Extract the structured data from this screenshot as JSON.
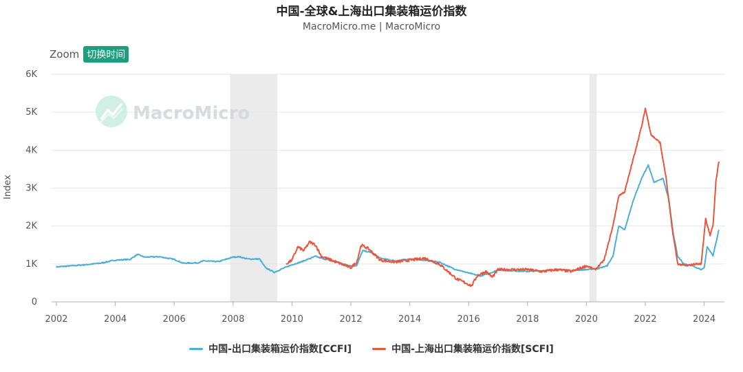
{
  "header": {
    "title": "中国-全球&上海出口集装箱运价指数",
    "subtitle": "MacroMicro.me | MacroMicro"
  },
  "controls": {
    "zoom_label": "Zoom",
    "zoom_button": "切换时间"
  },
  "watermark": {
    "text": "MacroMicro",
    "icon": "chart-logo-icon"
  },
  "colors": {
    "ccfi": "#4aaed9",
    "scfi": "#e8553b",
    "recession": "#ebebeb",
    "grid": "#e6e6e6"
  },
  "chart_data": {
    "type": "line",
    "title": "中国-全球&上海出口集装箱运价指数",
    "ylabel": "Index",
    "ylim": [
      0,
      6000
    ],
    "xlim": [
      2002,
      2024.75
    ],
    "yticks": [
      0,
      1000,
      2000,
      3000,
      4000,
      5000,
      6000
    ],
    "ytick_labels": [
      "0",
      "1K",
      "2K",
      "3K",
      "4K",
      "5K",
      "6K"
    ],
    "xticks": [
      "2002",
      "2004",
      "2006",
      "2008",
      "2010",
      "2012",
      "2014",
      "2016",
      "2018",
      "2020",
      "2022",
      "2024"
    ],
    "grid": true,
    "legend_position": "bottom",
    "shaded_periods": [
      [
        2007.9,
        2009.5
      ],
      [
        2020.1,
        2020.35
      ]
    ],
    "series": [
      {
        "name": "中国-出口集装箱运价指数[CCFI]",
        "color": "#4aaed9",
        "points": [
          [
            2002.0,
            920
          ],
          [
            2002.5,
            950
          ],
          [
            2003.0,
            980
          ],
          [
            2003.5,
            1020
          ],
          [
            2004.0,
            1100
          ],
          [
            2004.5,
            1120
          ],
          [
            2004.75,
            1250
          ],
          [
            2005.0,
            1180
          ],
          [
            2005.5,
            1190
          ],
          [
            2006.0,
            1120
          ],
          [
            2006.3,
            1020
          ],
          [
            2006.8,
            1030
          ],
          [
            2007.0,
            1080
          ],
          [
            2007.5,
            1060
          ],
          [
            2008.0,
            1180
          ],
          [
            2008.2,
            1190
          ],
          [
            2008.5,
            1130
          ],
          [
            2008.9,
            1130
          ],
          [
            2009.1,
            900
          ],
          [
            2009.4,
            780
          ],
          [
            2009.6,
            850
          ],
          [
            2010.0,
            980
          ],
          [
            2010.3,
            1050
          ],
          [
            2010.8,
            1200
          ],
          [
            2011.0,
            1150
          ],
          [
            2011.5,
            1050
          ],
          [
            2012.0,
            950
          ],
          [
            2012.2,
            960
          ],
          [
            2012.4,
            1350
          ],
          [
            2012.7,
            1300
          ],
          [
            2013.0,
            1150
          ],
          [
            2013.5,
            1080
          ],
          [
            2014.0,
            1130
          ],
          [
            2014.5,
            1100
          ],
          [
            2015.0,
            1050
          ],
          [
            2015.5,
            870
          ],
          [
            2016.0,
            760
          ],
          [
            2016.4,
            680
          ],
          [
            2016.8,
            780
          ],
          [
            2017.0,
            840
          ],
          [
            2017.5,
            820
          ],
          [
            2018.0,
            800
          ],
          [
            2018.5,
            820
          ],
          [
            2019.0,
            850
          ],
          [
            2019.5,
            830
          ],
          [
            2020.0,
            850
          ],
          [
            2020.4,
            880
          ],
          [
            2020.7,
            950
          ],
          [
            2020.9,
            1200
          ],
          [
            2021.1,
            2000
          ],
          [
            2021.3,
            1900
          ],
          [
            2021.6,
            2700
          ],
          [
            2021.9,
            3300
          ],
          [
            2022.1,
            3600
          ],
          [
            2022.3,
            3150
          ],
          [
            2022.6,
            3250
          ],
          [
            2022.8,
            2700
          ],
          [
            2022.95,
            1800
          ],
          [
            2023.1,
            1200
          ],
          [
            2023.3,
            1000
          ],
          [
            2023.6,
            950
          ],
          [
            2023.9,
            850
          ],
          [
            2024.0,
            900
          ],
          [
            2024.1,
            1450
          ],
          [
            2024.3,
            1220
          ],
          [
            2024.5,
            1900
          ]
        ]
      },
      {
        "name": "中国-上海出口集装箱运价指数[SCFI]",
        "color": "#e8553b",
        "points": [
          [
            2009.8,
            1000
          ],
          [
            2010.0,
            1100
          ],
          [
            2010.2,
            1450
          ],
          [
            2010.4,
            1350
          ],
          [
            2010.6,
            1580
          ],
          [
            2010.8,
            1500
          ],
          [
            2011.0,
            1200
          ],
          [
            2011.5,
            1050
          ],
          [
            2012.0,
            900
          ],
          [
            2012.2,
            1050
          ],
          [
            2012.35,
            1500
          ],
          [
            2012.6,
            1400
          ],
          [
            2013.0,
            1100
          ],
          [
            2013.5,
            1050
          ],
          [
            2014.0,
            1100
          ],
          [
            2014.5,
            1150
          ],
          [
            2015.0,
            1000
          ],
          [
            2015.3,
            800
          ],
          [
            2015.6,
            600
          ],
          [
            2015.9,
            500
          ],
          [
            2016.1,
            420
          ],
          [
            2016.3,
            700
          ],
          [
            2016.6,
            800
          ],
          [
            2016.8,
            650
          ],
          [
            2017.0,
            850
          ],
          [
            2017.5,
            850
          ],
          [
            2018.0,
            850
          ],
          [
            2018.5,
            800
          ],
          [
            2019.0,
            850
          ],
          [
            2019.5,
            800
          ],
          [
            2020.0,
            950
          ],
          [
            2020.3,
            850
          ],
          [
            2020.6,
            1100
          ],
          [
            2020.9,
            2000
          ],
          [
            2021.1,
            2800
          ],
          [
            2021.3,
            2900
          ],
          [
            2021.6,
            3800
          ],
          [
            2021.9,
            4700
          ],
          [
            2022.0,
            5100
          ],
          [
            2022.2,
            4400
          ],
          [
            2022.5,
            4200
          ],
          [
            2022.7,
            3300
          ],
          [
            2022.9,
            2000
          ],
          [
            2023.1,
            1000
          ],
          [
            2023.4,
            950
          ],
          [
            2023.7,
            1000
          ],
          [
            2023.9,
            1000
          ],
          [
            2024.05,
            2200
          ],
          [
            2024.2,
            1750
          ],
          [
            2024.3,
            2000
          ],
          [
            2024.4,
            3200
          ],
          [
            2024.5,
            3700
          ]
        ]
      }
    ]
  }
}
